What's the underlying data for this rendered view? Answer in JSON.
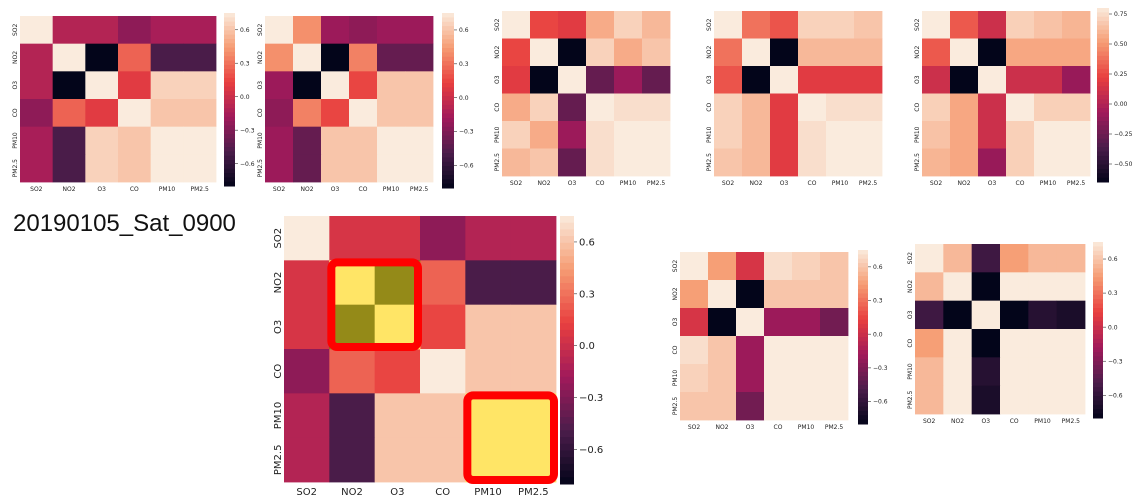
{
  "title": "20190105_Sat_0900",
  "variables": [
    "SO2",
    "NO2",
    "O3",
    "CO",
    "PM10",
    "PM2.5"
  ],
  "colormap": {
    "name": "rocket",
    "stops": [
      "#03051a",
      "#4c1d4b",
      "#a11a5b",
      "#e83f3f",
      "#f69c73",
      "#faebdd"
    ]
  },
  "highlight": {
    "box_color": "#ff0000",
    "fill_color": "#ffe566",
    "dim_fill_color": "#948a18"
  },
  "chart_data": [
    {
      "type": "heatmap",
      "id": "small-1",
      "categories": [
        "SO2",
        "NO2",
        "O3",
        "CO",
        "PM10",
        "PM2.5"
      ],
      "vmin": -0.8,
      "vmax": 0.75,
      "colorbar_ticks": [
        "0.6",
        "0.3",
        "0.0",
        "−0.3",
        "−0.6"
      ],
      "colorbar_tick_values": [
        0.6,
        0.3,
        0.0,
        -0.3,
        -0.6
      ],
      "values": [
        [
          1.0,
          -0.1,
          -0.1,
          -0.25,
          -0.15,
          -0.15
        ],
        [
          -0.1,
          1.0,
          -0.95,
          0.25,
          -0.5,
          -0.5
        ],
        [
          -0.1,
          -0.95,
          1.0,
          0.1,
          0.65,
          0.65
        ],
        [
          -0.25,
          0.25,
          0.1,
          1.0,
          0.6,
          0.6
        ],
        [
          -0.15,
          -0.5,
          0.65,
          0.6,
          1.0,
          1.0
        ],
        [
          -0.15,
          -0.5,
          0.65,
          0.6,
          1.0,
          1.0
        ]
      ]
    },
    {
      "type": "heatmap",
      "id": "small-2",
      "categories": [
        "SO2",
        "NO2",
        "O3",
        "CO",
        "PM10",
        "PM2.5"
      ],
      "vmin": -0.8,
      "vmax": 0.75,
      "colorbar_ticks": [
        "0.6",
        "0.3",
        "0.0",
        "−0.3",
        "−0.6"
      ],
      "colorbar_tick_values": [
        0.6,
        0.3,
        0.0,
        -0.3,
        -0.6
      ],
      "values": [
        [
          1.0,
          0.4,
          -0.2,
          -0.25,
          -0.2,
          -0.2
        ],
        [
          0.4,
          1.0,
          -0.95,
          0.35,
          -0.4,
          -0.4
        ],
        [
          -0.2,
          -0.95,
          1.0,
          0.15,
          0.6,
          0.6
        ],
        [
          -0.25,
          0.35,
          0.15,
          1.0,
          0.6,
          0.6
        ],
        [
          -0.2,
          -0.4,
          0.6,
          0.6,
          1.0,
          1.0
        ],
        [
          -0.2,
          -0.4,
          0.6,
          0.6,
          1.0,
          1.0
        ]
      ]
    },
    {
      "type": "heatmap",
      "id": "small-3",
      "categories": [
        "SO2",
        "NO2",
        "O3",
        "CO",
        "PM10",
        "PM2.5"
      ],
      "vmin": -0.8,
      "vmax": 0.75,
      "colorbar_ticks": [],
      "colorbar_tick_values": [],
      "values": [
        [
          1.0,
          0.15,
          0.1,
          0.5,
          0.65,
          0.55
        ],
        [
          0.15,
          1.0,
          -0.95,
          0.65,
          0.5,
          0.6
        ],
        [
          0.1,
          -0.95,
          1.0,
          -0.4,
          -0.2,
          -0.4
        ],
        [
          0.5,
          0.65,
          -0.4,
          1.0,
          0.7,
          0.7
        ],
        [
          0.65,
          0.5,
          -0.2,
          0.7,
          1.0,
          1.0
        ],
        [
          0.55,
          0.6,
          -0.4,
          0.7,
          1.0,
          1.0
        ]
      ]
    },
    {
      "type": "heatmap",
      "id": "small-4",
      "categories": [
        "SO2",
        "NO2",
        "O3",
        "CO",
        "PM10",
        "PM2.5"
      ],
      "vmin": -0.8,
      "vmax": 0.75,
      "colorbar_ticks": [],
      "colorbar_tick_values": [],
      "values": [
        [
          1.0,
          0.3,
          0.2,
          0.65,
          0.65,
          0.6
        ],
        [
          0.3,
          1.0,
          -0.95,
          0.55,
          0.55,
          0.55
        ],
        [
          0.2,
          -0.95,
          1.0,
          0.1,
          0.1,
          0.1
        ],
        [
          0.65,
          0.55,
          0.1,
          1.0,
          0.7,
          0.7
        ],
        [
          0.65,
          0.55,
          0.1,
          0.7,
          1.0,
          1.0
        ],
        [
          0.6,
          0.55,
          0.1,
          0.7,
          1.0,
          1.0
        ]
      ]
    },
    {
      "type": "heatmap",
      "id": "small-5",
      "categories": [
        "SO2",
        "NO2",
        "O3",
        "CO",
        "PM10",
        "PM2.5"
      ],
      "vmin": -0.65,
      "vmax": 0.8,
      "colorbar_ticks": [
        "0.75",
        "0.50",
        "0.25",
        "0.00",
        "−0.25",
        "−0.50"
      ],
      "colorbar_tick_values": [
        0.75,
        0.5,
        0.25,
        0.0,
        -0.25,
        -0.5
      ],
      "values": [
        [
          1.0,
          0.3,
          0.1,
          0.7,
          0.65,
          0.6
        ],
        [
          0.3,
          1.0,
          -0.95,
          0.55,
          0.55,
          0.55
        ],
        [
          0.1,
          -0.95,
          1.0,
          0.1,
          0.1,
          -0.1
        ],
        [
          0.7,
          0.55,
          0.1,
          1.0,
          0.7,
          0.7
        ],
        [
          0.65,
          0.55,
          0.1,
          0.7,
          1.0,
          1.0
        ],
        [
          0.6,
          0.55,
          -0.1,
          0.7,
          1.0,
          1.0
        ]
      ]
    },
    {
      "type": "heatmap",
      "id": "main",
      "categories": [
        "SO2",
        "NO2",
        "O3",
        "CO",
        "PM10",
        "PM2.5"
      ],
      "vmin": -0.8,
      "vmax": 0.75,
      "colorbar_ticks": [
        "0.6",
        "0.3",
        "0.0",
        "−0.3",
        "−0.6"
      ],
      "colorbar_tick_values": [
        0.6,
        0.3,
        0.0,
        -0.3,
        -0.6
      ],
      "values": [
        [
          1.0,
          0.05,
          0.05,
          -0.25,
          -0.1,
          -0.1
        ],
        [
          0.05,
          1.0,
          -0.95,
          0.25,
          -0.5,
          -0.5
        ],
        [
          0.05,
          -0.95,
          1.0,
          0.15,
          0.6,
          0.6
        ],
        [
          -0.25,
          0.25,
          0.15,
          1.0,
          0.6,
          0.6
        ],
        [
          -0.1,
          -0.5,
          0.6,
          0.6,
          1.0,
          1.0
        ],
        [
          -0.1,
          -0.5,
          0.6,
          0.6,
          1.0,
          1.0
        ]
      ],
      "highlights": [
        {
          "rows": [
            1,
            2
          ],
          "cols": [
            1,
            2
          ]
        },
        {
          "rows": [
            4,
            5
          ],
          "cols": [
            4,
            5
          ]
        }
      ]
    },
    {
      "type": "heatmap",
      "id": "small-6",
      "categories": [
        "SO2",
        "NO2",
        "O3",
        "CO",
        "PM10",
        "PM2.5"
      ],
      "vmin": -0.8,
      "vmax": 0.75,
      "colorbar_ticks": [
        "0.6",
        "0.3",
        "0.0",
        "−0.3",
        "−0.6"
      ],
      "colorbar_tick_values": [
        0.6,
        0.3,
        0.0,
        -0.3,
        -0.6
      ],
      "values": [
        [
          1.0,
          0.45,
          0.05,
          0.7,
          0.65,
          0.6
        ],
        [
          0.45,
          1.0,
          -0.95,
          0.6,
          0.6,
          0.6
        ],
        [
          0.05,
          -0.95,
          1.0,
          -0.2,
          -0.2,
          -0.35
        ],
        [
          0.7,
          0.6,
          -0.2,
          1.0,
          0.75,
          0.75
        ],
        [
          0.65,
          0.6,
          -0.2,
          0.75,
          1.0,
          1.0
        ],
        [
          0.6,
          0.6,
          -0.35,
          0.75,
          1.0,
          1.0
        ]
      ]
    },
    {
      "type": "heatmap",
      "id": "small-7",
      "categories": [
        "SO2",
        "NO2",
        "O3",
        "CO",
        "PM10",
        "PM2.5"
      ],
      "vmin": -0.8,
      "vmax": 0.75,
      "colorbar_ticks": [
        "0.6",
        "0.3",
        "0.0",
        "−0.3",
        "−0.6"
      ],
      "colorbar_tick_values": [
        0.6,
        0.3,
        0.0,
        -0.3,
        -0.6
      ],
      "values": [
        [
          1.0,
          0.55,
          -0.55,
          0.45,
          0.55,
          0.55
        ],
        [
          0.55,
          1.0,
          -0.95,
          0.75,
          0.75,
          0.75
        ],
        [
          -0.55,
          -0.95,
          1.0,
          -0.8,
          -0.65,
          -0.7
        ],
        [
          0.45,
          0.75,
          -0.8,
          1.0,
          0.75,
          0.75
        ],
        [
          0.55,
          0.75,
          -0.65,
          0.75,
          1.0,
          1.0
        ],
        [
          0.55,
          0.75,
          -0.7,
          0.75,
          1.0,
          1.0
        ]
      ]
    }
  ]
}
